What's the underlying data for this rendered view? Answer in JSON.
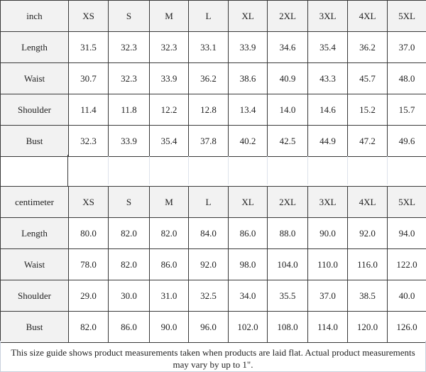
{
  "sizes": [
    "XS",
    "S",
    "M",
    "L",
    "XL",
    "2XL",
    "3XL",
    "4XL",
    "5XL"
  ],
  "tables": [
    {
      "unit": "inch",
      "rows": [
        {
          "label": "Length",
          "values": [
            "31.5",
            "32.3",
            "32.3",
            "33.1",
            "33.9",
            "34.6",
            "35.4",
            "36.2",
            "37.0"
          ]
        },
        {
          "label": "Waist",
          "values": [
            "30.7",
            "32.3",
            "33.9",
            "36.2",
            "38.6",
            "40.9",
            "43.3",
            "45.7",
            "48.0"
          ]
        },
        {
          "label": "Shoulder",
          "values": [
            "11.4",
            "11.8",
            "12.2",
            "12.8",
            "13.4",
            "14.0",
            "14.6",
            "15.2",
            "15.7"
          ]
        },
        {
          "label": "Bust",
          "values": [
            "32.3",
            "33.9",
            "35.4",
            "37.8",
            "40.2",
            "42.5",
            "44.9",
            "47.2",
            "49.6"
          ]
        }
      ]
    },
    {
      "unit": "centimeter",
      "rows": [
        {
          "label": "Length",
          "values": [
            "80.0",
            "82.0",
            "82.0",
            "84.0",
            "86.0",
            "88.0",
            "90.0",
            "92.0",
            "94.0"
          ]
        },
        {
          "label": "Waist",
          "values": [
            "78.0",
            "82.0",
            "86.0",
            "92.0",
            "98.0",
            "104.0",
            "110.0",
            "116.0",
            "122.0"
          ]
        },
        {
          "label": "Shoulder",
          "values": [
            "29.0",
            "30.0",
            "31.0",
            "32.5",
            "34.0",
            "35.5",
            "37.0",
            "38.5",
            "40.0"
          ]
        },
        {
          "label": "Bust",
          "values": [
            "82.0",
            "86.0",
            "90.0",
            "96.0",
            "102.0",
            "108.0",
            "114.0",
            "120.0",
            "126.0"
          ]
        }
      ]
    }
  ],
  "footer": "This size guide shows product measurements taken when products are laid flat. Actual product measurements may vary by up to 1\"."
}
